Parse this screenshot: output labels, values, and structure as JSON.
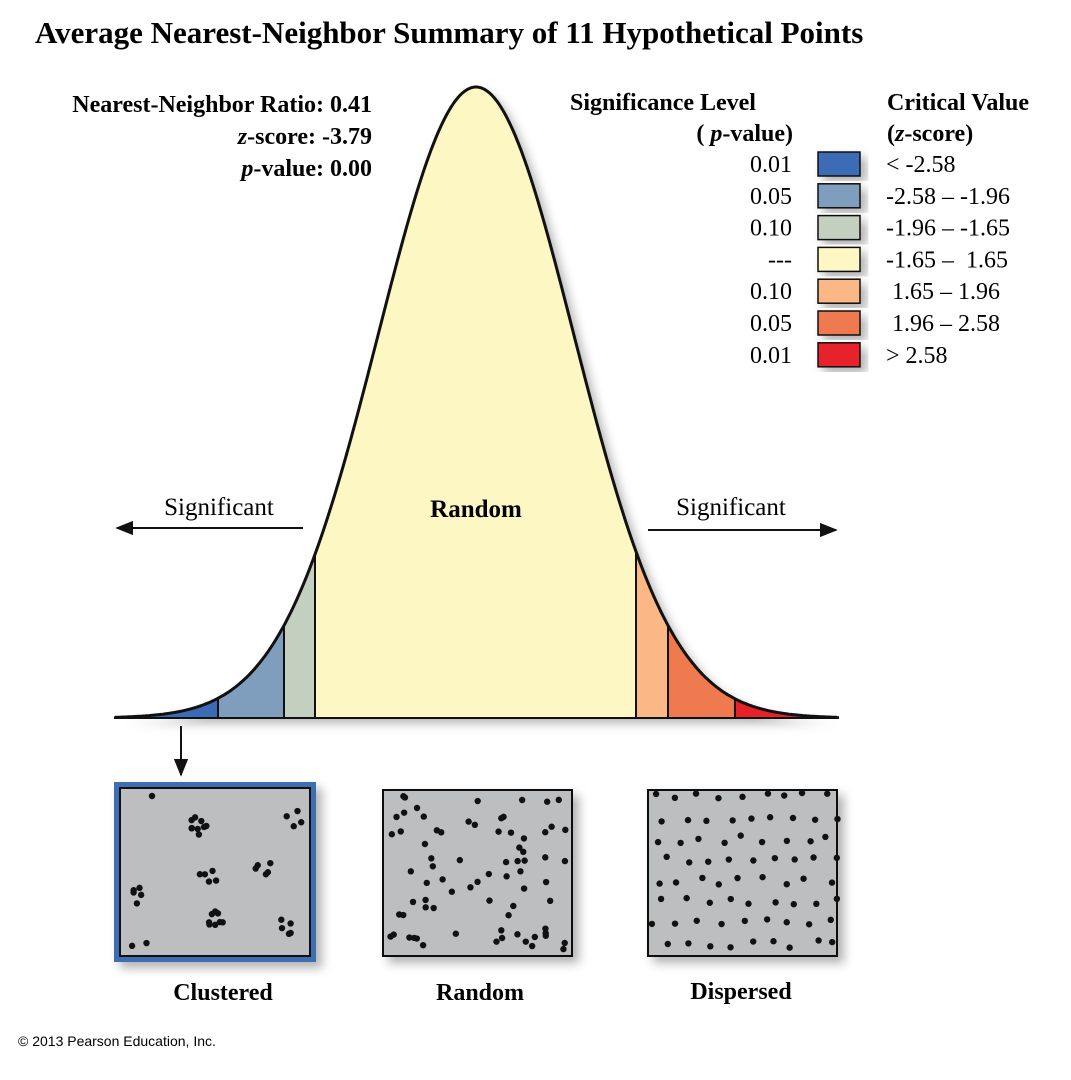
{
  "title": "Average Nearest-Neighbor Summary of 11 Hypothetical Points",
  "stats": [
    {
      "label": "Nearest-Neighbor Ratio:",
      "value": "0.41"
    },
    {
      "var": "z",
      "label": "-score:",
      "value": "-3.79"
    },
    {
      "var": "p",
      "label": "-value:",
      "value": "0.00"
    }
  ],
  "legend": {
    "significance_header": {
      "line1": "Significance Level",
      "open": "(",
      "var": "p",
      "close": "-value)"
    },
    "critical_header": {
      "line1": "Critical Value",
      "open": "(",
      "var": "z",
      "close": "-score)"
    },
    "rows": [
      {
        "p": "0.01",
        "z": "< -2.58",
        "color": "#3a6cb5"
      },
      {
        "p": "0.05",
        "z": "-2.58 – -1.96",
        "color": "#7f9dbd"
      },
      {
        "p": "0.10",
        "z": "-1.96 – -1.65",
        "color": "#c3d0c0"
      },
      {
        "p": "---",
        "z": "-1.65 –  1.65",
        "color": "#fdf7c3"
      },
      {
        "p": "0.10",
        "z": " 1.65 – 1.96",
        "color": "#fbb886"
      },
      {
        "p": "0.05",
        "z": " 1.96 – 2.58",
        "color": "#f07a50"
      },
      {
        "p": "0.01",
        "z": "> 2.58",
        "color": "#e8202a"
      }
    ]
  },
  "curve": {
    "left_label": "Significant",
    "center_label": "Random",
    "right_label": "Significant"
  },
  "panels": [
    {
      "label": "Clustered"
    },
    {
      "label": "Random"
    },
    {
      "label": "Dispersed"
    }
  ],
  "copyright": "© 2013 Pearson Education, Inc."
}
